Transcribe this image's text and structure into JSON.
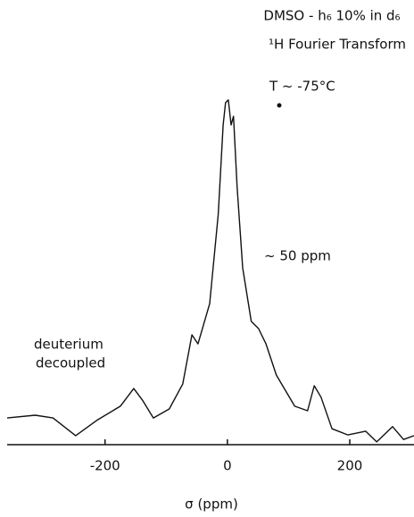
{
  "chart_data": {
    "type": "line",
    "title": [
      "DMSO - h₆ 10% in d₆",
      "¹H Fourier Transform"
    ],
    "annotations": [
      "T ~ -75°C",
      "~ 50 ppm",
      "deuterium",
      "decoupled"
    ],
    "x_label": "σ (ppm)",
    "x": [
      -360,
      -314,
      -285,
      -248,
      -212,
      -175,
      -153,
      -139,
      -121,
      -95,
      -73,
      -58,
      -48,
      -29,
      -15,
      -7,
      -3,
      1.5,
      6,
      10,
      16,
      25,
      39,
      51,
      63,
      80,
      110,
      131,
      142,
      153,
      171,
      197,
      226,
      244,
      270,
      288,
      305
    ],
    "values": [
      7.7,
      8.5,
      7.7,
      2.6,
      7.2,
      11.1,
      16.2,
      12.9,
      7.7,
      10.3,
      17.5,
      31.7,
      29.1,
      40.7,
      66.5,
      92.3,
      98.7,
      99.5,
      92.3,
      94.8,
      74.2,
      51,
      35.6,
      33.5,
      29.1,
      20.1,
      11.1,
      9.8,
      17,
      13.7,
      4.6,
      2.8,
      3.9,
      0.8,
      5.2,
      1.5,
      2.6
    ],
    "color": "#111111",
    "xlim": [
      -360,
      305
    ],
    "ylim": [
      0,
      100
    ],
    "xticks": [
      -200,
      0,
      200
    ]
  }
}
